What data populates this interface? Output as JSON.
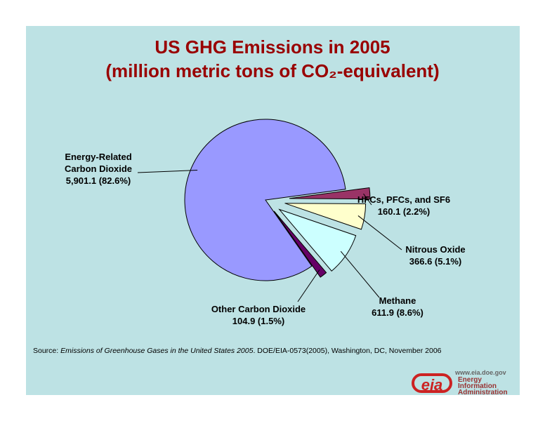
{
  "chart_data": {
    "type": "pie",
    "title": "US GHG Emissions in 2005",
    "subtitle": "(million metric tons of CO₂-equivalent)",
    "categories": [
      "Energy-Related Carbon Dioxide",
      "HFCs, PFCs, and SF6",
      "Nitrous Oxide",
      "Methane",
      "Other Carbon Dioxide"
    ],
    "values": [
      5901.1,
      160.1,
      366.6,
      611.9,
      104.9
    ],
    "value_labels": [
      "5,901.1 (82.6%)",
      "160.1 (2.2%)",
      "366.6 (5.1%)",
      "611.9 (8.6%)",
      "104.9 (1.5%)"
    ],
    "colors": [
      "#9999ff",
      "#993366",
      "#ffffcc",
      "#ccffff",
      "#660066"
    ]
  },
  "source": {
    "label": "Source:",
    "title": "Emissions of Greenhouse Gases in the United States 2005",
    "rest": ". DOE/EIA-0573(2005), Washington, DC, November 2006"
  },
  "logo": {
    "mark": "eia",
    "url": "www.eia.doe.gov",
    "lines": [
      "Energy",
      "Information",
      "Administration"
    ]
  }
}
